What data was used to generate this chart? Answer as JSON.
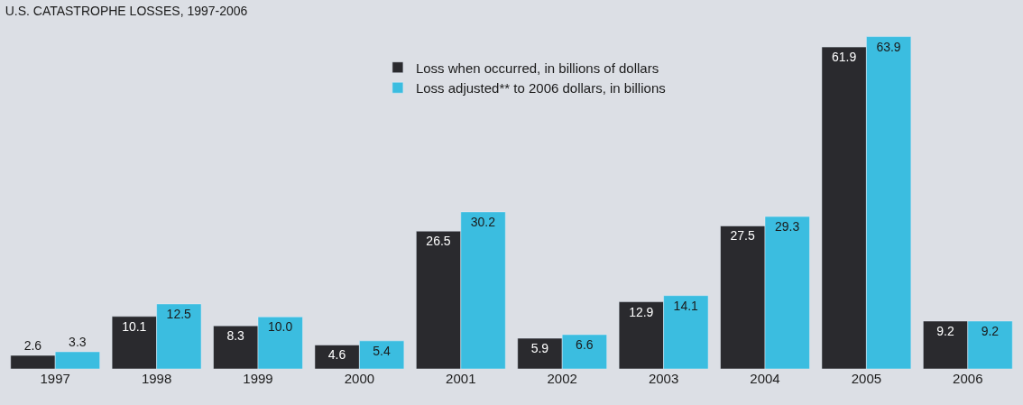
{
  "chart_data": {
    "type": "bar",
    "title": "U.S. CATASTROPHE LOSSES, 1997-2006",
    "categories": [
      "1997",
      "1998",
      "1999",
      "2000",
      "2001",
      "2002",
      "2003",
      "2004",
      "2005",
      "2006"
    ],
    "series": [
      {
        "name": "Loss when occurred, in billions of dollars",
        "color": "#2a2a2e",
        "values": [
          2.6,
          10.1,
          8.3,
          4.6,
          26.5,
          5.9,
          12.9,
          27.5,
          61.9,
          9.2
        ],
        "value_labels": [
          "2.6",
          "10.1",
          "8.3",
          "4.6",
          "26.5",
          "5.9",
          "12.9",
          "27.5",
          "61.9",
          "9.2"
        ]
      },
      {
        "name": "Loss adjusted** to 2006 dollars, in billions",
        "color": "#3bbde0",
        "values": [
          3.3,
          12.5,
          10.0,
          5.4,
          30.2,
          6.6,
          14.1,
          29.3,
          63.9,
          9.2
        ],
        "value_labels": [
          "3.3",
          "12.5",
          "10.0",
          "5.4",
          "30.2",
          "6.6",
          "14.1",
          "29.3",
          "63.9",
          "9.2"
        ]
      }
    ],
    "ylim": [
      0,
      64
    ],
    "legend": "top"
  }
}
